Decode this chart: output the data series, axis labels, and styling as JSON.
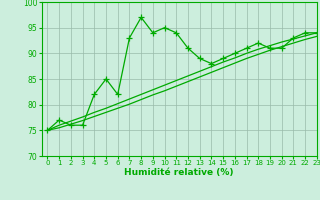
{
  "x_data": [
    0,
    1,
    2,
    3,
    4,
    5,
    6,
    7,
    8,
    9,
    10,
    11,
    12,
    13,
    14,
    15,
    16,
    17,
    18,
    19,
    20,
    21,
    22,
    23
  ],
  "y_main": [
    75,
    77,
    76,
    76,
    82,
    85,
    82,
    93,
    97,
    94,
    95,
    94,
    91,
    89,
    88,
    89,
    90,
    91,
    92,
    91,
    91,
    93,
    94,
    94
  ],
  "y_trend1": [
    75.0,
    76.0,
    76.8,
    77.6,
    78.5,
    79.3,
    80.2,
    81.1,
    82.0,
    82.9,
    83.8,
    84.7,
    85.6,
    86.5,
    87.4,
    88.3,
    89.1,
    90.0,
    90.8,
    91.5,
    92.2,
    92.8,
    93.4,
    94.0
  ],
  "y_trend2": [
    75.0,
    75.5,
    76.2,
    76.9,
    77.7,
    78.5,
    79.3,
    80.1,
    81.0,
    81.9,
    82.7,
    83.6,
    84.5,
    85.4,
    86.3,
    87.2,
    88.1,
    89.0,
    89.8,
    90.6,
    91.3,
    92.0,
    92.7,
    93.3
  ],
  "line_color": "#00AA00",
  "bg_color": "#CCEEDD",
  "grid_color": "#99BBAA",
  "xlabel": "Humidité relative (%)",
  "ylim": [
    70,
    100
  ],
  "xlim": [
    -0.5,
    23
  ],
  "yticks": [
    70,
    75,
    80,
    85,
    90,
    95,
    100
  ],
  "xticks": [
    0,
    1,
    2,
    3,
    4,
    5,
    6,
    7,
    8,
    9,
    10,
    11,
    12,
    13,
    14,
    15,
    16,
    17,
    18,
    19,
    20,
    21,
    22,
    23
  ]
}
